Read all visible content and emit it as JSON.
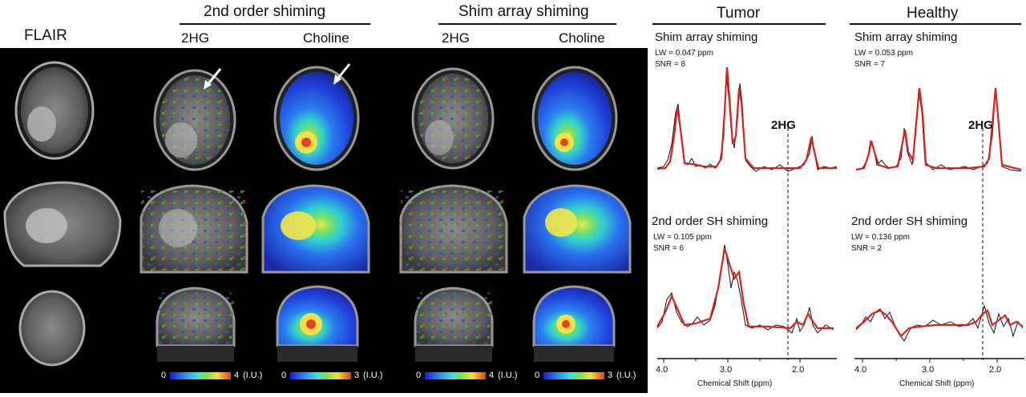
{
  "header": {
    "flair": "FLAIR",
    "second_order": "2nd order shiming",
    "shim_array": "Shim array shiming",
    "tumor": "Tumor",
    "healthy": "Healthy"
  },
  "subheaders": {
    "so_2hg": "2HG",
    "so_choline": "Choline",
    "sa_2hg": "2HG",
    "sa_choline": "Choline"
  },
  "colorbars": [
    {
      "min": "0",
      "max": "4",
      "unit": "(I.U.)"
    },
    {
      "min": "0",
      "max": "3",
      "unit": "(I.U.)"
    },
    {
      "min": "0",
      "max": "4",
      "unit": "(I.U.)"
    },
    {
      "min": "0",
      "max": "3",
      "unit": "(I.U.)"
    }
  ],
  "spectra": {
    "tumor_top": {
      "title": "Shim array shiming",
      "lw": "LW    = 0.047 ppm",
      "snr": "SNR = 8"
    },
    "healthy_top": {
      "title": "Shim array shiming",
      "lw": "LW    = 0.053 ppm",
      "snr": "SNR = 7"
    },
    "tumor_bottom": {
      "title": "2nd order SH shiming",
      "lw": "LW    = 0.105 ppm",
      "snr": "SNR = 6"
    },
    "healthy_bottom": {
      "title": "2nd order SH shiming",
      "lw": "LW    = 0.136 ppm",
      "snr": "SNR = 2"
    },
    "marker_label": "2HG"
  },
  "axes": {
    "ticks": [
      "4.0",
      "3.0",
      "2.0"
    ],
    "xlabel": "Chemical Shift (ppm)"
  },
  "colors": {
    "fit": "#d7231f",
    "raw": "#111111",
    "background_mri": "#000000"
  }
}
